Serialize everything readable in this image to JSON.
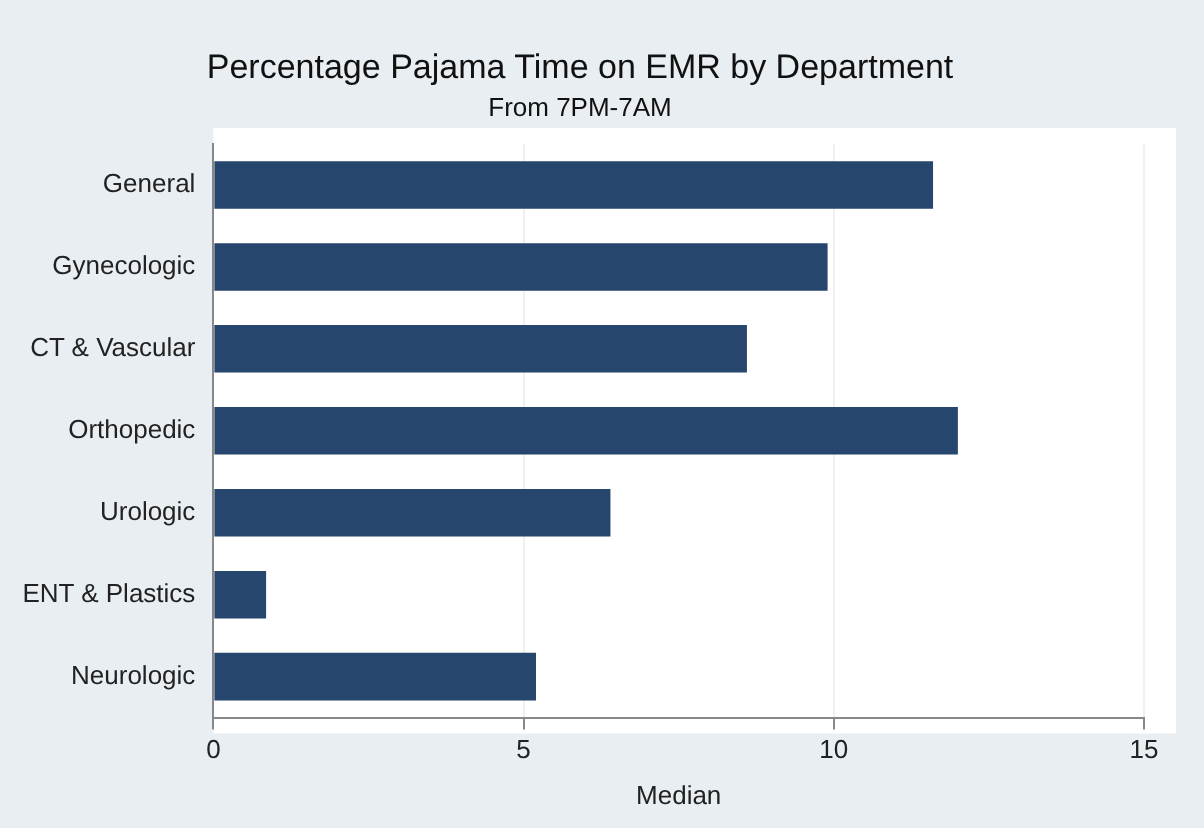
{
  "chart_data": {
    "type": "bar",
    "orientation": "horizontal",
    "title": "Percentage Pajama Time on EMR by Department",
    "subtitle": "From 7PM-7AM",
    "xlabel": "Median",
    "categories": [
      "General",
      "Gynecologic",
      "CT & Vascular",
      "Orthopedic",
      "Urologic",
      "ENT & Plastics",
      "Neurologic"
    ],
    "values": [
      11.6,
      9.9,
      8.6,
      12.0,
      6.4,
      0.85,
      5.2
    ],
    "color": "#26466d",
    "xlim": [
      0,
      15
    ],
    "xticks": [
      0,
      5,
      10,
      15
    ],
    "grid": "x"
  }
}
